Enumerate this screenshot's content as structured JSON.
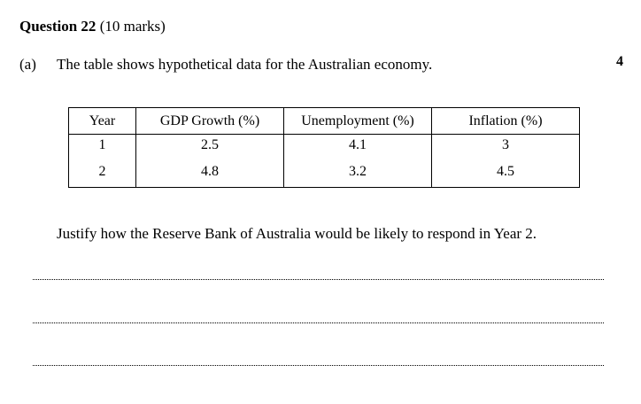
{
  "question": {
    "number_label": "Question 22",
    "marks_label": "(10 marks)"
  },
  "part": {
    "label": "(a)",
    "text": "The table shows hypothetical data for the Australian economy.",
    "marks": "4"
  },
  "table": {
    "headers": [
      "Year",
      "GDP Growth (%)",
      "Unemployment (%)",
      "Inflation (%)"
    ],
    "rows": [
      [
        "1",
        "2.5",
        "4.1",
        "3"
      ],
      [
        "2",
        "4.8",
        "3.2",
        "4.5"
      ]
    ]
  },
  "prompt": "Justify how the Reserve Bank of Australia would be likely to respond in Year 2."
}
